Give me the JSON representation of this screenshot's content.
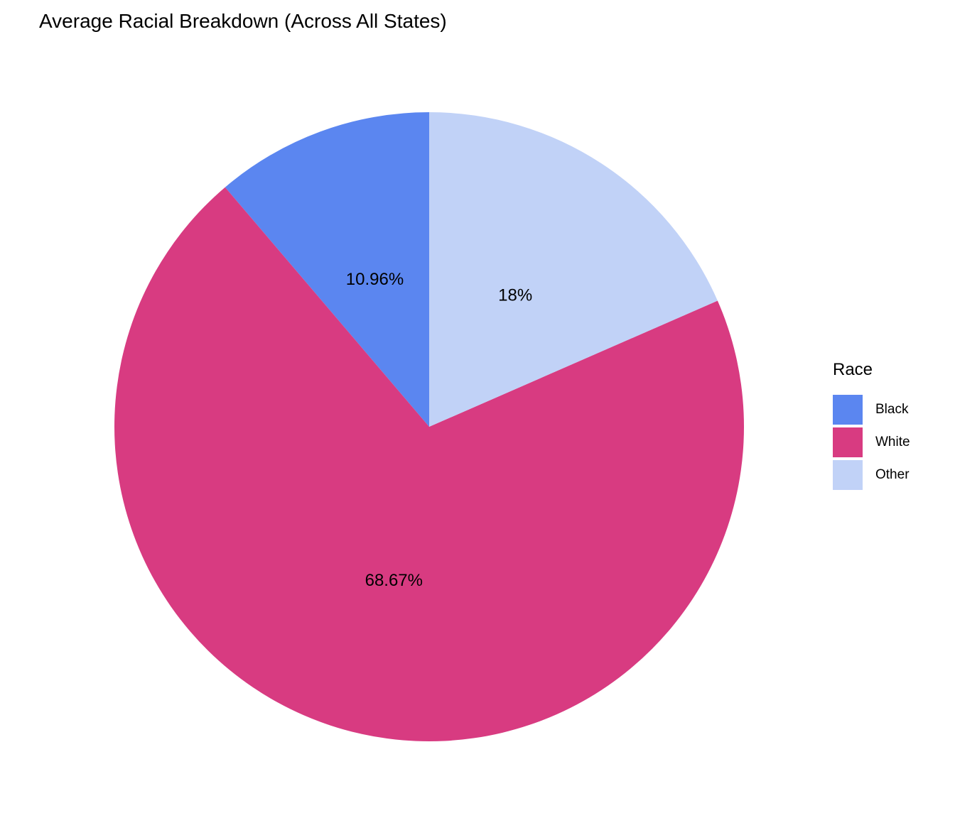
{
  "title": "Average Racial Breakdown (Across All States)",
  "legend": {
    "title": "Race",
    "items": [
      {
        "label": "Black",
        "color": "#5B86F0"
      },
      {
        "label": "White",
        "color": "#D83B81"
      },
      {
        "label": "Other",
        "color": "#C1D2F7"
      }
    ]
  },
  "chart_data": {
    "type": "pie",
    "title": "Average Racial Breakdown (Across All States)",
    "categories": [
      "Black",
      "White",
      "Other"
    ],
    "values": [
      10.96,
      68.67,
      18
    ],
    "labels": [
      "10.96%",
      "68.67%",
      "18%"
    ],
    "colors": [
      "#5B86F0",
      "#D83B81",
      "#C1D2F7"
    ],
    "legend_title": "Race",
    "legend_position": "right",
    "start_angle": "12-oclock",
    "direction": "counterclockwise",
    "label_radius_fraction": 0.5,
    "grid": false
  }
}
